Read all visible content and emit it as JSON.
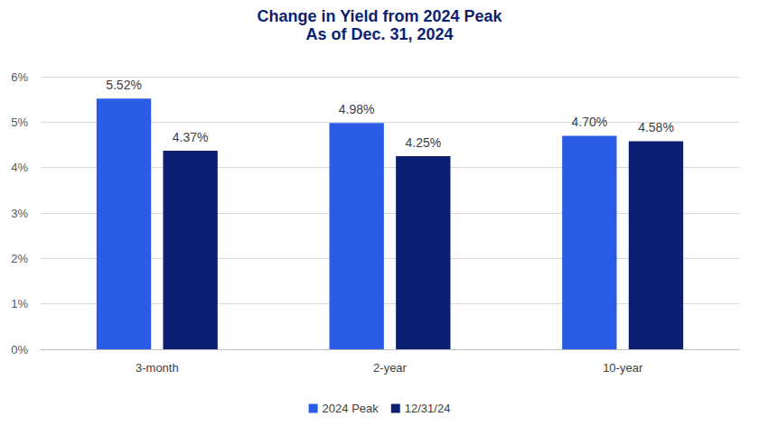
{
  "chart_data": {
    "type": "bar",
    "title": "Change in Yield from 2024 Peak",
    "subtitle": "As of Dec. 31, 2024",
    "categories": [
      "3-month",
      "2-year",
      "10-year"
    ],
    "series": [
      {
        "name": "2024 Peak",
        "color": "#2b5ce6",
        "values": [
          5.52,
          4.98,
          4.7
        ],
        "value_labels": [
          "5.52%",
          "4.98%",
          "4.70%"
        ]
      },
      {
        "name": "12/31/24",
        "color": "#0c1f72",
        "values": [
          4.37,
          4.25,
          4.58
        ],
        "value_labels": [
          "4.37%",
          "4.25%",
          "4.58%"
        ]
      }
    ],
    "ylim": [
      0,
      6
    ],
    "yticks": [
      {
        "value": 0,
        "label": "0%"
      },
      {
        "value": 1,
        "label": "1%"
      },
      {
        "value": 2,
        "label": "2%"
      },
      {
        "value": 3,
        "label": "3%"
      },
      {
        "value": 4,
        "label": "4%"
      },
      {
        "value": 5,
        "label": "5%"
      },
      {
        "value": 6,
        "label": "6%"
      }
    ],
    "grid": true,
    "legend": "bottom",
    "data_labels": true
  }
}
